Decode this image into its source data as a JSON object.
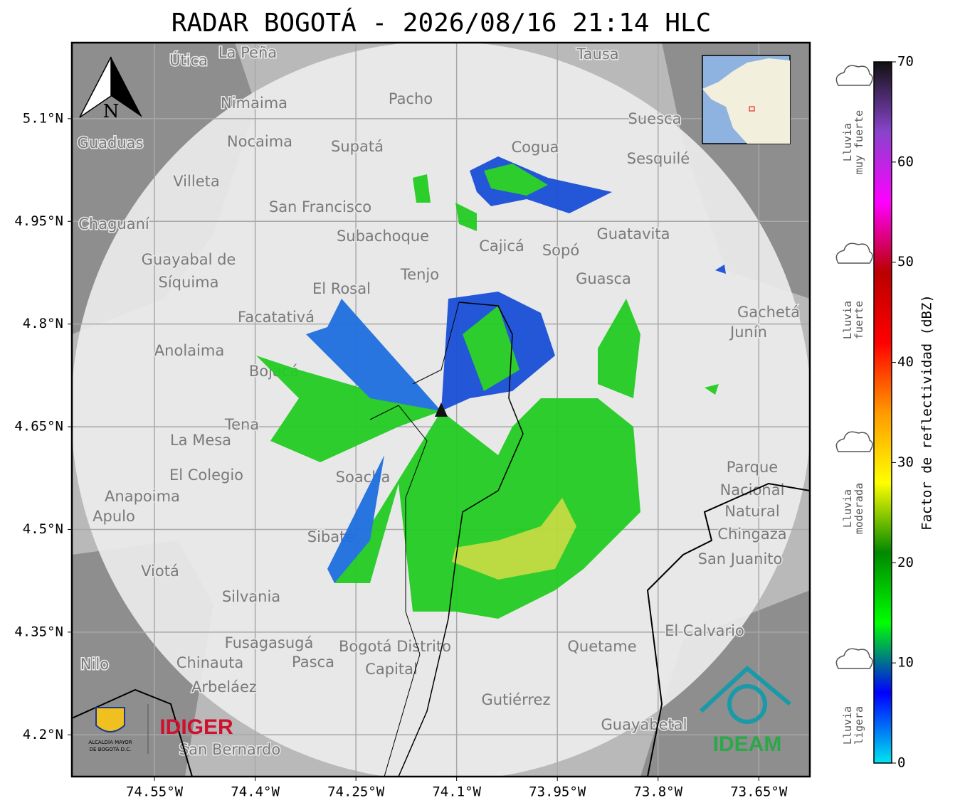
{
  "title": "RADAR BOGOTÁ - 2026/08/16 21:14 HLC",
  "map": {
    "xlim": [
      -74.673,
      -73.574
    ],
    "ylim": [
      4.139,
      5.211
    ],
    "xticks": [
      {
        "value": -74.55,
        "label": "74.55°W"
      },
      {
        "value": -74.4,
        "label": "74.4°W"
      },
      {
        "value": -74.25,
        "label": "74.25°W"
      },
      {
        "value": -74.1,
        "label": "74.1°W"
      },
      {
        "value": -73.95,
        "label": "73.95°W"
      },
      {
        "value": -73.8,
        "label": "73.8°W"
      },
      {
        "value": -73.65,
        "label": "73.65°W"
      }
    ],
    "yticks": [
      {
        "value": 4.2,
        "label": "4.2°N"
      },
      {
        "value": 4.35,
        "label": "4.35°N"
      },
      {
        "value": 4.5,
        "label": "4.5°N"
      },
      {
        "value": 4.65,
        "label": "4.65°N"
      },
      {
        "value": 4.8,
        "label": "4.8°N"
      },
      {
        "value": 4.95,
        "label": "4.95°N"
      },
      {
        "value": 5.1,
        "label": "5.1°N"
      }
    ],
    "grid": true,
    "north": "N",
    "places": [
      "La Peña",
      "Útica",
      "Tausa",
      "Pacho",
      "Nimaima",
      "Nocaima",
      "Supatá",
      "Guaduas",
      "Cogua",
      "Suesca",
      "Sesquilé",
      "Villeta",
      "San Francisco",
      "Chaguaní",
      "Subachoque",
      "Cajicá",
      "Sopó",
      "Guatavita",
      "Guayabal de",
      "Síquima",
      "Tenjo",
      "Guasca",
      "El Rosal",
      "Facatativá",
      "Gachetá",
      "Junín",
      "Anolaima",
      "Bojacá",
      "Tena",
      "La Mesa",
      "El Colegio",
      "Soacha",
      "Anapoima",
      "Apulo",
      "Parque",
      "Nacional",
      "Natural",
      "Chingaza",
      "San Juanito",
      "Sibaté",
      "Viotá",
      "Silvania",
      "El Calvario",
      "Fusagasugá",
      "Bogotá Distrito",
      "Capital",
      "Quetame",
      "Chinauta",
      "Pasca",
      "Nilo",
      "Arbeláez",
      "Gutiérrez",
      "Guayabetal",
      "San Bernardo"
    ]
  },
  "logos": {
    "alcaldia": [
      "ALCALDÍA MAYOR",
      "DE BOGOTÁ D.C."
    ],
    "idiger": "IDIGER",
    "ideam": "IDEAM"
  },
  "colorbar": {
    "label": "Factor de reflectividad (dBZ)",
    "range": [
      0,
      70
    ],
    "ticks": [
      0,
      10,
      20,
      30,
      40,
      50,
      60,
      70
    ],
    "colors": [
      "#00e5ee",
      "#0000ff",
      "#00ff00",
      "#008800",
      "#ffff00",
      "#ff9900",
      "#ff0000",
      "#bb0000",
      "#ff00ff",
      "#8844cc",
      "#111111"
    ]
  },
  "rain_levels": [
    {
      "lines": [
        "Lluvia",
        "muy fuerte"
      ]
    },
    {
      "lines": [
        "Lluvia",
        "fuerte"
      ]
    },
    {
      "lines": [
        "Lluvia",
        "moderada"
      ]
    },
    {
      "lines": [
        "Lluvia",
        "ligera"
      ]
    }
  ]
}
